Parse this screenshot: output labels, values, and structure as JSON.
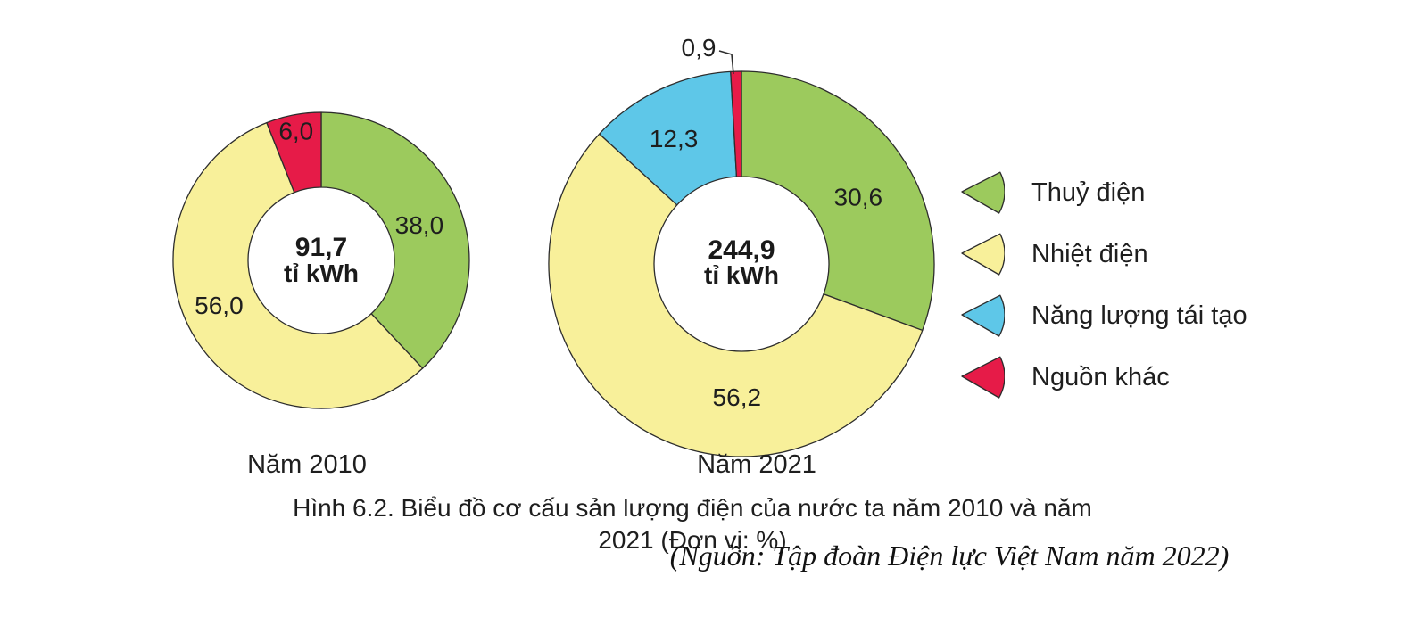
{
  "figure": {
    "caption": "Hình 6.2. Biểu đồ cơ cấu sản lượng điện của nước ta năm 2010 và năm 2021 (Đơn vị: %)",
    "source": "(Nguồn: Tập đoàn Điện lực Việt Nam năm 2022)",
    "unit": "%"
  },
  "legend": {
    "position": "right",
    "items": [
      {
        "label": "Thuỷ điện",
        "color": "#9cca5d"
      },
      {
        "label": "Nhiệt điện",
        "color": "#f8f09a"
      },
      {
        "label": "Năng lượng tái tạo",
        "color": "#5ec7e8"
      },
      {
        "label": "Nguồn khác",
        "color": "#e61b48"
      }
    ]
  },
  "chart_data": [
    {
      "type": "pie",
      "subtype": "donut",
      "title": "Năm 2010",
      "center_value": "91,7",
      "center_unit": "tỉ kWh",
      "unit": "%",
      "start_angle_deg": 0,
      "direction": "clockwise",
      "categories": [
        "Thuỷ điện",
        "Nhiệt điện",
        "Nguồn khác"
      ],
      "values": [
        38.0,
        56.0,
        6.0
      ],
      "labels": [
        "38,0",
        "56,0",
        "6,0"
      ],
      "colors": [
        "#9cca5d",
        "#f8f09a",
        "#e61b48"
      ]
    },
    {
      "type": "pie",
      "subtype": "donut",
      "title": "Năm 2021",
      "center_value": "244,9",
      "center_unit": "tỉ kWh",
      "unit": "%",
      "start_angle_deg": 0,
      "direction": "clockwise",
      "categories": [
        "Thuỷ điện",
        "Nhiệt điện",
        "Năng lượng tái tạo",
        "Nguồn khác"
      ],
      "values": [
        30.6,
        56.2,
        12.3,
        0.9
      ],
      "labels": [
        "30,6",
        "56,2",
        "12,3",
        "0,9"
      ],
      "colors": [
        "#9cca5d",
        "#f8f09a",
        "#5ec7e8",
        "#e61b48"
      ]
    }
  ]
}
